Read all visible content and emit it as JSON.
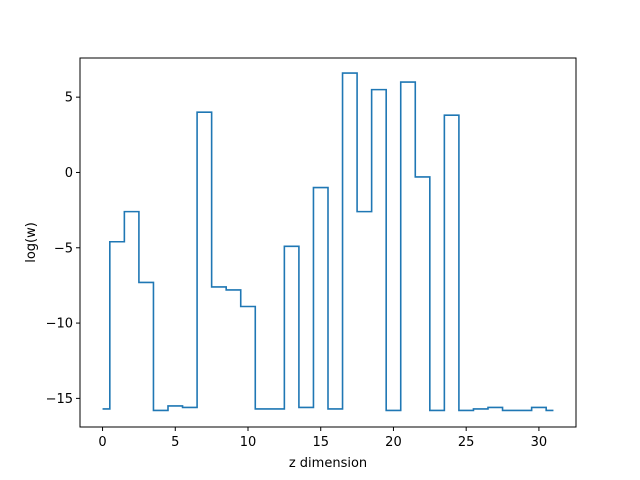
{
  "chart_data": {
    "type": "line",
    "drawstyle": "steps-mid",
    "title": "",
    "xlabel": "z dimension",
    "ylabel": "log(w)",
    "xlim": [
      -1.55,
      32.55
    ],
    "ylim": [
      -16.9,
      7.6
    ],
    "xticks": [
      0,
      5,
      10,
      15,
      20,
      25,
      30
    ],
    "yticks": [
      -15,
      -10,
      -5,
      0,
      5
    ],
    "ytick_labels": [
      "−15",
      "−10",
      "−5",
      "0",
      "5"
    ],
    "grid": false,
    "color": "#1f77b4",
    "series": [
      {
        "x": [
          0,
          1,
          2,
          3,
          4,
          5,
          6,
          7,
          8,
          9,
          10,
          11,
          12,
          13,
          14,
          15,
          16,
          17,
          18,
          19,
          20,
          21,
          22,
          23,
          24,
          25,
          26,
          27,
          28,
          29,
          30,
          31
        ],
        "y": [
          -15.7,
          -4.6,
          -2.6,
          -7.3,
          -15.8,
          -15.5,
          -15.6,
          4.0,
          -7.6,
          -7.8,
          -8.9,
          -15.7,
          -15.7,
          -4.9,
          -15.6,
          -1.0,
          -15.7,
          6.6,
          -2.6,
          5.5,
          -15.8,
          6.0,
          -0.3,
          -15.8,
          3.8,
          -15.8,
          -15.7,
          -15.6,
          -15.8,
          -15.8,
          -15.6,
          -15.8
        ]
      }
    ]
  }
}
